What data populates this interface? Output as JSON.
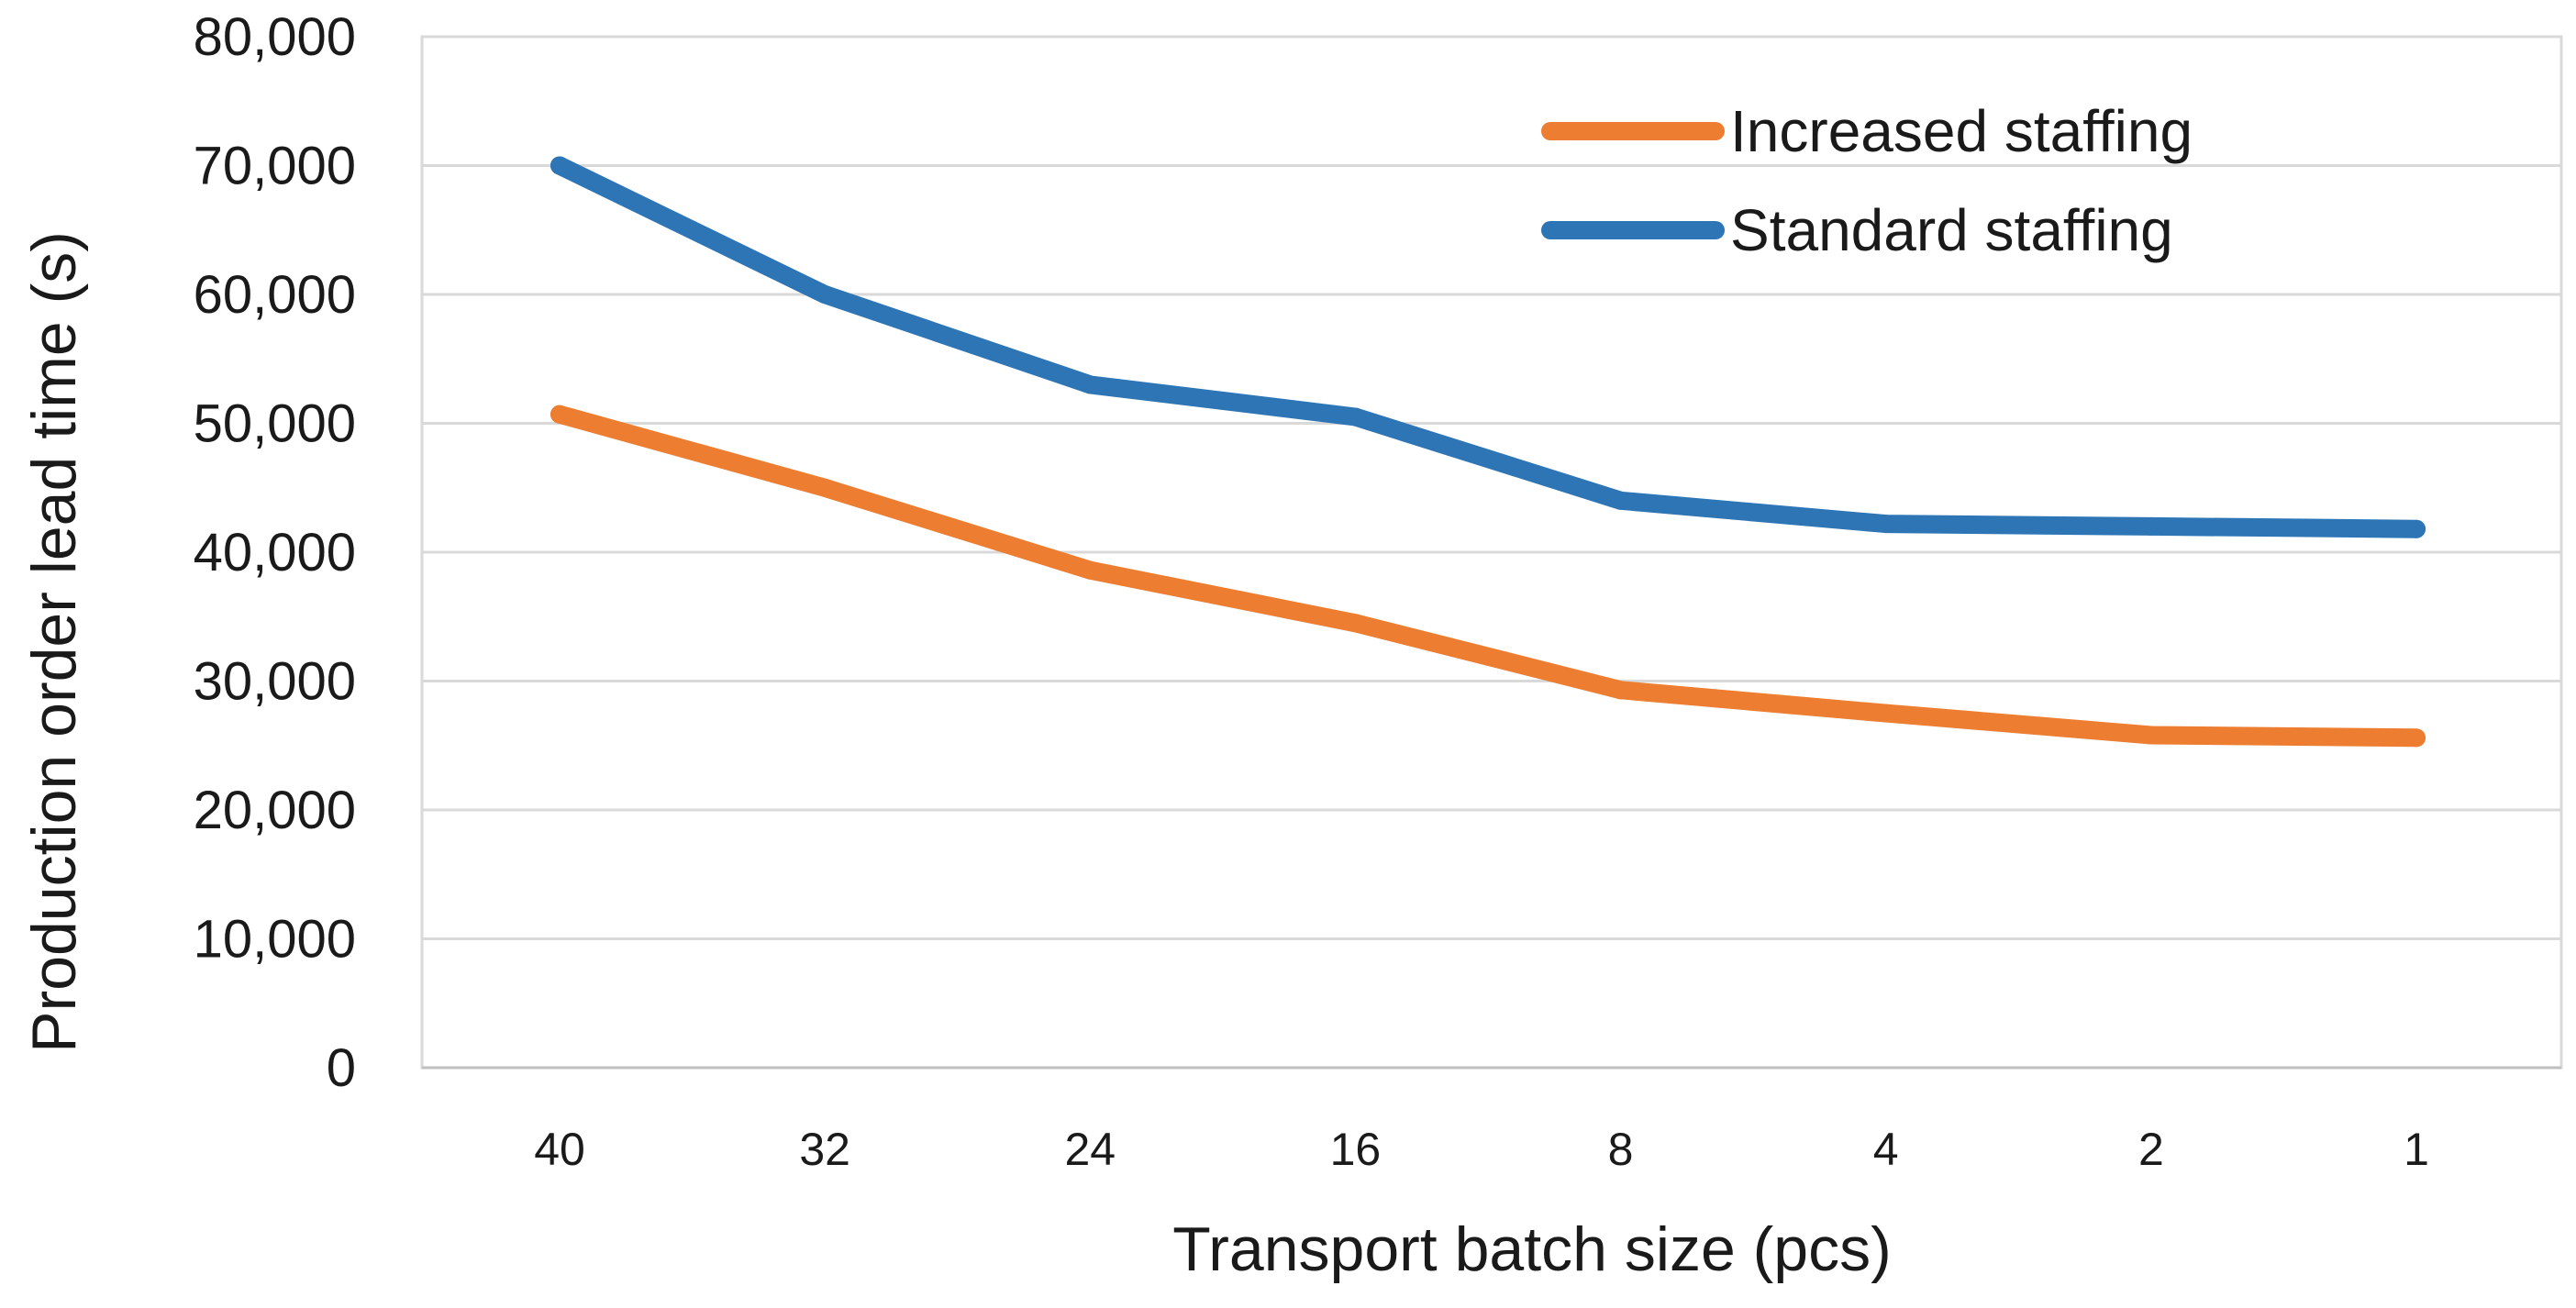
{
  "chart_data": {
    "type": "line",
    "title": "",
    "xlabel": "Transport batch size (pcs)",
    "ylabel": "Production order lead time (s)",
    "categories": [
      "40",
      "32",
      "24",
      "16",
      "8",
      "4",
      "2",
      "1"
    ],
    "ylim": [
      0,
      80000
    ],
    "yticks": [
      0,
      10000,
      20000,
      30000,
      40000,
      50000,
      60000,
      70000,
      80000
    ],
    "ytick_labels": [
      "0",
      "10,000",
      "20,000",
      "30,000",
      "40,000",
      "50,000",
      "60,000",
      "70,000",
      "80,000"
    ],
    "grid": true,
    "legend_position": "top-right",
    "series": [
      {
        "name": "Increased staffing",
        "color": "#ED7D31",
        "values": [
          50700,
          45000,
          38600,
          34500,
          29300,
          27500,
          25800,
          25600
        ]
      },
      {
        "name": "Standard staffing",
        "color": "#2E75B6",
        "values": [
          70000,
          60000,
          53000,
          50500,
          44000,
          42200,
          42000,
          41800
        ]
      }
    ],
    "colors": {
      "grid": "#d9d9d9",
      "axis": "#bfbfbf",
      "plot_border": "#d9d9d9"
    }
  }
}
